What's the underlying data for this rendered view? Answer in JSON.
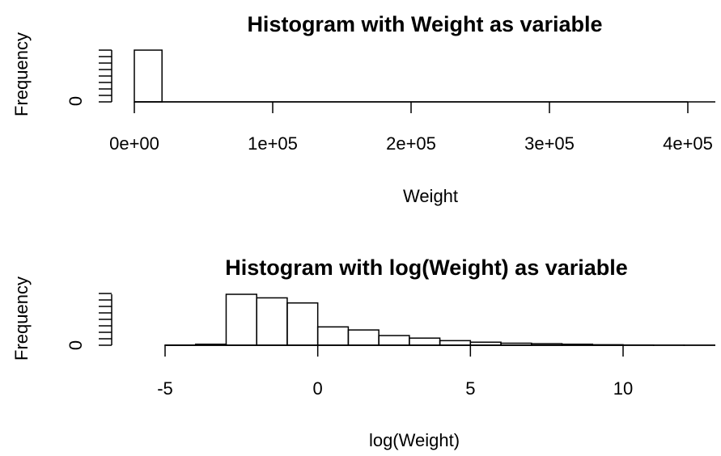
{
  "chart_data": [
    {
      "type": "bar",
      "title": "Histogram with Weight as variable",
      "xlabel": "Weight",
      "ylabel": "Frequency",
      "xlim": [
        0,
        420000
      ],
      "x_ticks": [
        "0e+00",
        "1e+05",
        "2e+05",
        "3e+05",
        "4e+05"
      ],
      "y_ticks": [
        "0"
      ],
      "bins": [
        {
          "x0": 0,
          "x1": 20000,
          "count": 1.0
        },
        {
          "x0": 20000,
          "x1": 40000,
          "count": 0.0
        },
        {
          "x0": 40000,
          "x1": 60000,
          "count": 0.0
        },
        {
          "x0": 60000,
          "x1": 80000,
          "count": 0.0
        },
        {
          "x0": 80000,
          "x1": 100000,
          "count": 0.0
        },
        {
          "x0": 100000,
          "x1": 120000,
          "count": 0.0
        },
        {
          "x0": 120000,
          "x1": 140000,
          "count": 0.0
        },
        {
          "x0": 140000,
          "x1": 160000,
          "count": 0.0
        },
        {
          "x0": 160000,
          "x1": 180000,
          "count": 0.0
        },
        {
          "x0": 180000,
          "x1": 200000,
          "count": 0.0
        },
        {
          "x0": 200000,
          "x1": 220000,
          "count": 0.0
        },
        {
          "x0": 220000,
          "x1": 240000,
          "count": 0.0
        },
        {
          "x0": 240000,
          "x1": 260000,
          "count": 0.0
        },
        {
          "x0": 260000,
          "x1": 280000,
          "count": 0.0
        },
        {
          "x0": 280000,
          "x1": 300000,
          "count": 0.0
        },
        {
          "x0": 300000,
          "x1": 320000,
          "count": 0.0
        },
        {
          "x0": 320000,
          "x1": 340000,
          "count": 0.0
        },
        {
          "x0": 340000,
          "x1": 360000,
          "count": 0.0
        },
        {
          "x0": 360000,
          "x1": 380000,
          "count": 0.0
        },
        {
          "x0": 380000,
          "x1": 400000,
          "count": 0.0
        },
        {
          "x0": 400000,
          "x1": 420000,
          "count": 0.0
        }
      ]
    },
    {
      "type": "bar",
      "title": "Histogram with log(Weight) as variable",
      "xlabel": "log(Weight)",
      "ylabel": "Frequency",
      "xlim": [
        -6,
        13
      ],
      "x_ticks": [
        "-5",
        "0",
        "5",
        "10"
      ],
      "y_ticks": [
        "0"
      ],
      "bins": [
        {
          "x0": -6,
          "x1": -5,
          "count": 0.0
        },
        {
          "x0": -5,
          "x1": -4,
          "count": 0.003
        },
        {
          "x0": -4,
          "x1": -3,
          "count": 0.02
        },
        {
          "x0": -3,
          "x1": -2,
          "count": 1.0
        },
        {
          "x0": -2,
          "x1": -1,
          "count": 0.93
        },
        {
          "x0": -1,
          "x1": 0,
          "count": 0.83
        },
        {
          "x0": 0,
          "x1": 1,
          "count": 0.36
        },
        {
          "x0": 1,
          "x1": 2,
          "count": 0.3
        },
        {
          "x0": 2,
          "x1": 3,
          "count": 0.19
        },
        {
          "x0": 3,
          "x1": 4,
          "count": 0.14
        },
        {
          "x0": 4,
          "x1": 5,
          "count": 0.09
        },
        {
          "x0": 5,
          "x1": 6,
          "count": 0.06
        },
        {
          "x0": 6,
          "x1": 7,
          "count": 0.04
        },
        {
          "x0": 7,
          "x1": 8,
          "count": 0.03
        },
        {
          "x0": 8,
          "x1": 9,
          "count": 0.02
        },
        {
          "x0": 9,
          "x1": 10,
          "count": 0.01
        },
        {
          "x0": 10,
          "x1": 11,
          "count": 0.004
        },
        {
          "x0": 11,
          "x1": 12,
          "count": 0.002
        },
        {
          "x0": 12,
          "x1": 13,
          "count": 0.001
        }
      ]
    }
  ]
}
